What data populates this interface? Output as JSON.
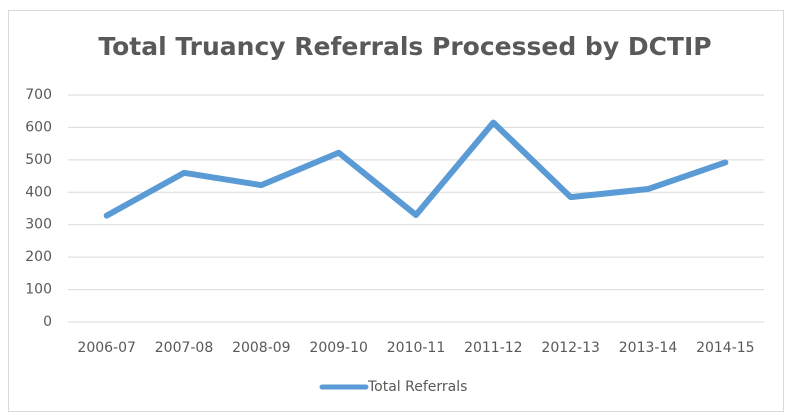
{
  "chart_data": {
    "type": "line",
    "title": "Total Truancy Referrals Processed by DCTIP",
    "categories": [
      "2006-07",
      "2007-08",
      "2008-09",
      "2009-10",
      "2010-11",
      "2011-12",
      "2012-13",
      "2013-14",
      "2014-15"
    ],
    "series": [
      {
        "name": "Total Referrals",
        "color": "#5b9bd5",
        "values": [
          328,
          460,
          422,
          522,
          330,
          615,
          385,
          410,
          492
        ]
      }
    ],
    "ylim": [
      0,
      700
    ],
    "yticks": [
      0,
      100,
      200,
      300,
      400,
      500,
      600,
      700
    ],
    "grid": true,
    "legend": "bottom"
  }
}
